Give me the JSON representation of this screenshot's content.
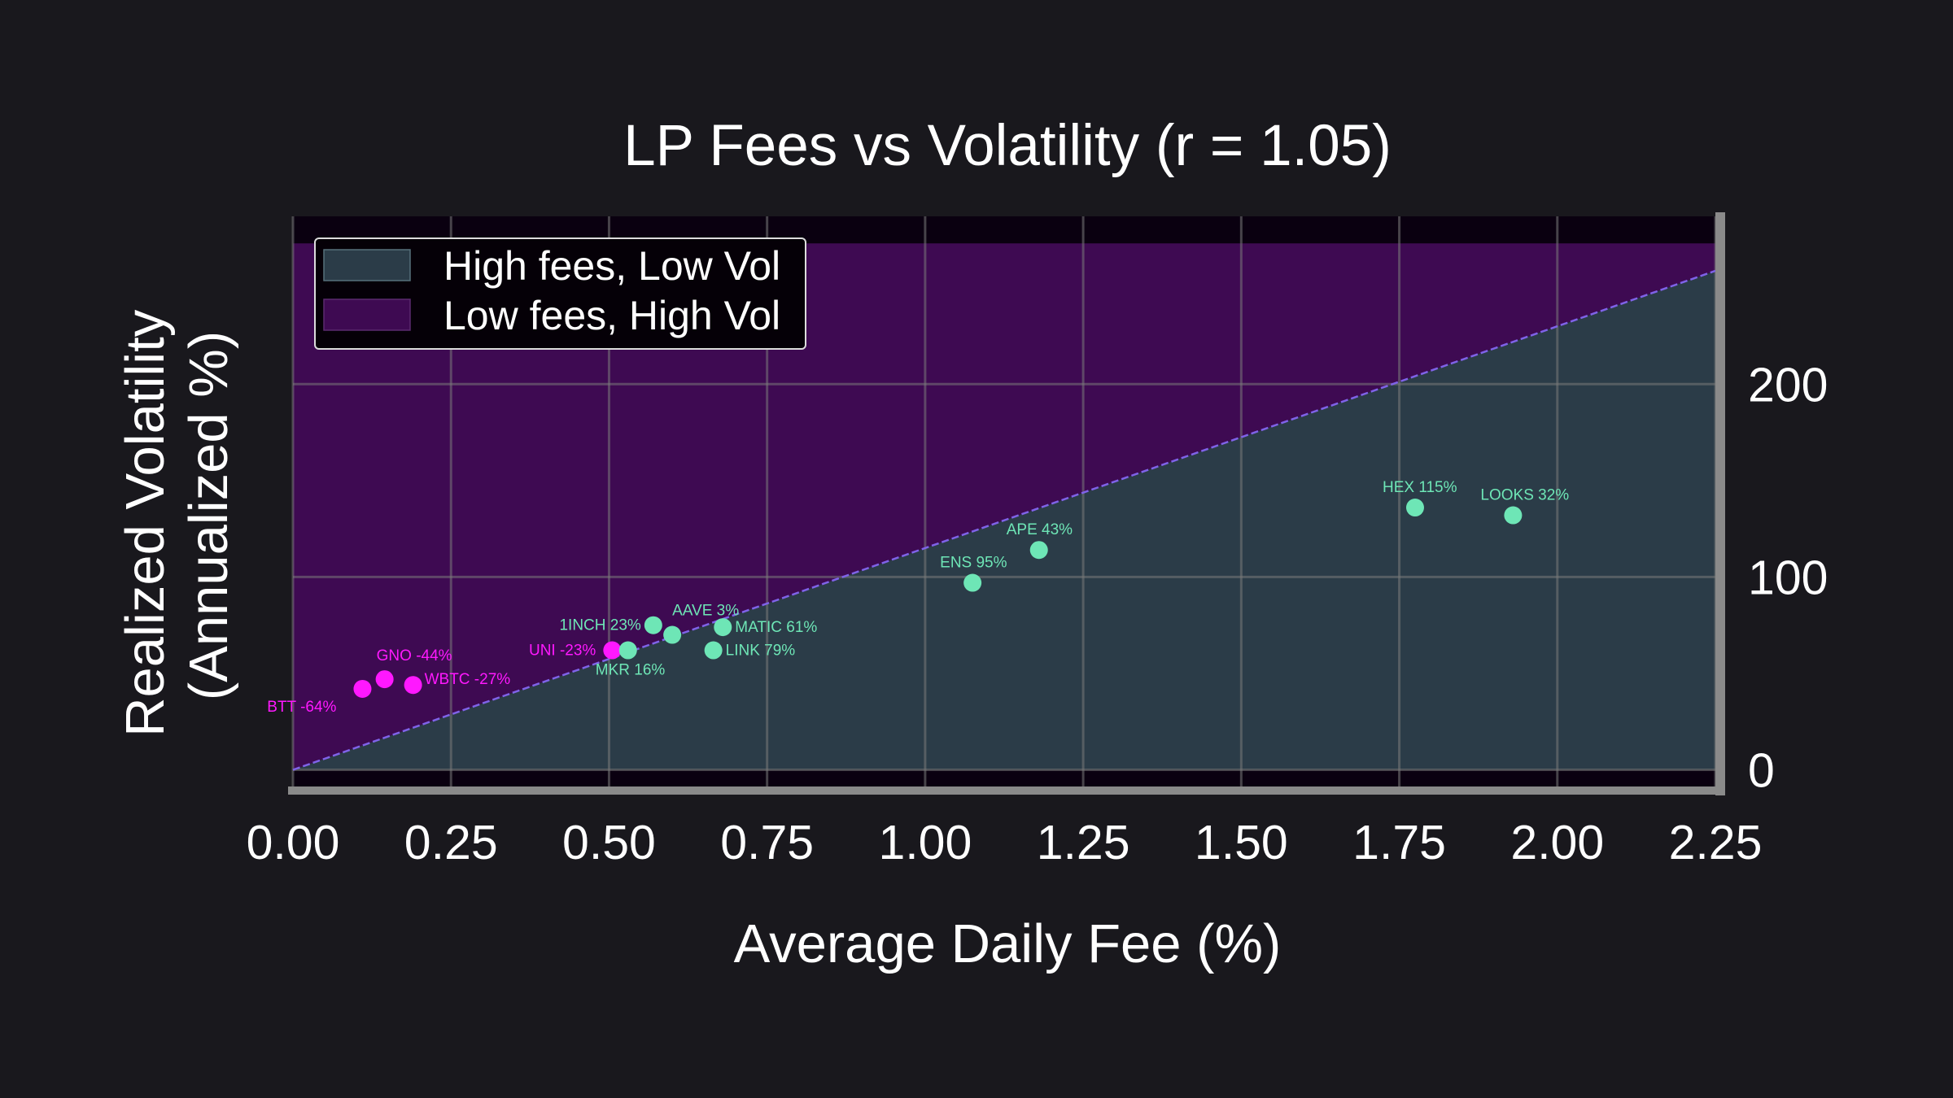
{
  "chart_data": {
    "type": "scatter",
    "title": "LP Fees vs Volatility (r = 1.05)",
    "xlabel": "Average Daily Fee (%)",
    "ylabel": [
      "Realized Volatility",
      "(Annualized %)"
    ],
    "xlim": [
      0.0,
      2.25
    ],
    "ylim": [
      -12,
      287
    ],
    "x_ticks": [
      "0.00",
      "0.25",
      "0.50",
      "0.75",
      "1.00",
      "1.25",
      "1.50",
      "1.75",
      "2.00",
      "2.25"
    ],
    "y_ticks": [
      "0",
      "100",
      "200"
    ],
    "y_axis_side": "right",
    "grid": true,
    "legend_position": "top-left",
    "regions": [
      {
        "label": "High fees, Low Vol",
        "color": "#2b3c48",
        "below_line": true
      },
      {
        "label": "Low fees, High Vol",
        "color": "#3e0a52",
        "below_line": false
      }
    ],
    "reference_line": {
      "slope": 115.0,
      "intercept": 0,
      "color": "#7f63e8",
      "y_max": 273
    },
    "points": [
      {
        "label": "BTT -64%",
        "x": 0.11,
        "y": 42,
        "color": "#ff18ff"
      },
      {
        "label": "GNO -44%",
        "x": 0.145,
        "y": 47,
        "color": "#ff18ff"
      },
      {
        "label": "WBTC -27%",
        "x": 0.19,
        "y": 44,
        "color": "#ff18ff"
      },
      {
        "label": "UNI -23%",
        "x": 0.505,
        "y": 62,
        "color": "#ff18ff"
      },
      {
        "label": "MKR 16%",
        "x": 0.53,
        "y": 62,
        "color": "#6ee6b6"
      },
      {
        "label": "1INCH 23%",
        "x": 0.57,
        "y": 75,
        "color": "#6ee6b6"
      },
      {
        "label": "AAVE 3%",
        "x": 0.6,
        "y": 70,
        "color": "#6ee6b6"
      },
      {
        "label": "LINK 79%",
        "x": 0.665,
        "y": 62,
        "color": "#6ee6b6"
      },
      {
        "label": "MATIC 61%",
        "x": 0.68,
        "y": 74,
        "color": "#6ee6b6"
      },
      {
        "label": "ENS 95%",
        "x": 1.075,
        "y": 97,
        "color": "#6ee6b6"
      },
      {
        "label": "APE 43%",
        "x": 1.18,
        "y": 114,
        "color": "#6ee6b6"
      },
      {
        "label": "HEX 115%",
        "x": 1.775,
        "y": 136,
        "color": "#6ee6b6"
      },
      {
        "label": "LOOKS 32%",
        "x": 1.93,
        "y": 132,
        "color": "#6ee6b6"
      }
    ]
  }
}
